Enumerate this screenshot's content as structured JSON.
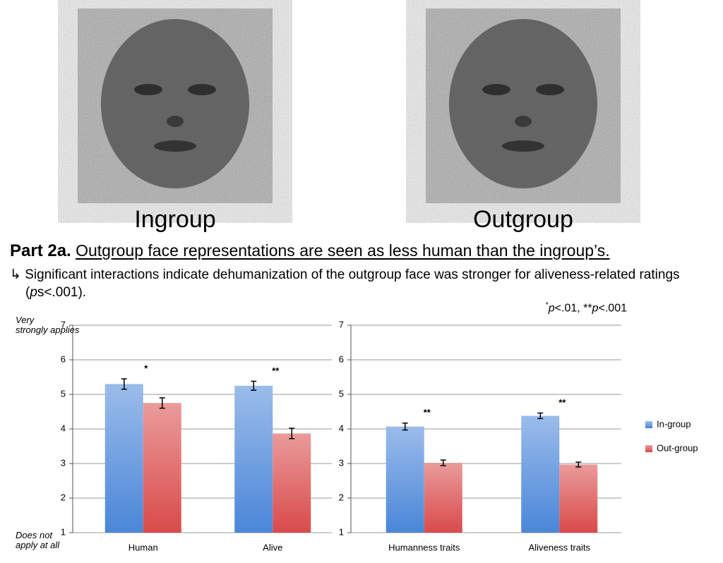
{
  "images": [
    {
      "label": "Ingroup"
    },
    {
      "label": "Outgroup"
    }
  ],
  "heading": {
    "prefix": "Part 2a.",
    "text": "Outgroup face representations are seen as less human than the ingroup’s."
  },
  "note": {
    "before": "Significant interactions indicate dehumanization of the outgroup face was stronger for aliveness-related ratings (",
    "italic": "p",
    "after": "s<.001)."
  },
  "significance_note": [
    "*",
    "p",
    "<.01, **",
    "p",
    "<.001"
  ],
  "chart_data": [
    {
      "type": "bar",
      "ylabel_top": "Very strongly applies",
      "ylabel_bottom": "Does not apply at all",
      "categories": [
        "Human",
        "Alive"
      ],
      "annotations": [
        "*",
        "**"
      ],
      "series": [
        {
          "color": "#4a86d8",
          "values": [
            5.3,
            5.25
          ],
          "errors": [
            0.15,
            0.13
          ]
        },
        {
          "color": "#d94a4a",
          "values": [
            4.75,
            3.87
          ],
          "errors": [
            0.15,
            0.15
          ]
        }
      ],
      "ylim": [
        1,
        7
      ],
      "yticks": [
        1,
        2,
        3,
        4,
        5,
        6,
        7
      ],
      "grid": true
    },
    {
      "type": "bar",
      "categories": [
        "Humanness traits",
        "Aliveness traits"
      ],
      "annotations": [
        "**",
        "**"
      ],
      "series": [
        {
          "name": "In-group",
          "color": "#4a86d8",
          "values": [
            4.07,
            4.38
          ],
          "errors": [
            0.1,
            0.08
          ]
        },
        {
          "name": "Out-group",
          "color": "#d94a4a",
          "values": [
            3.02,
            2.97
          ],
          "errors": [
            0.08,
            0.07
          ]
        }
      ],
      "ylim": [
        1,
        7
      ],
      "yticks": [
        1,
        2,
        3,
        4,
        5,
        6,
        7
      ],
      "grid": true,
      "legend": "right"
    }
  ]
}
